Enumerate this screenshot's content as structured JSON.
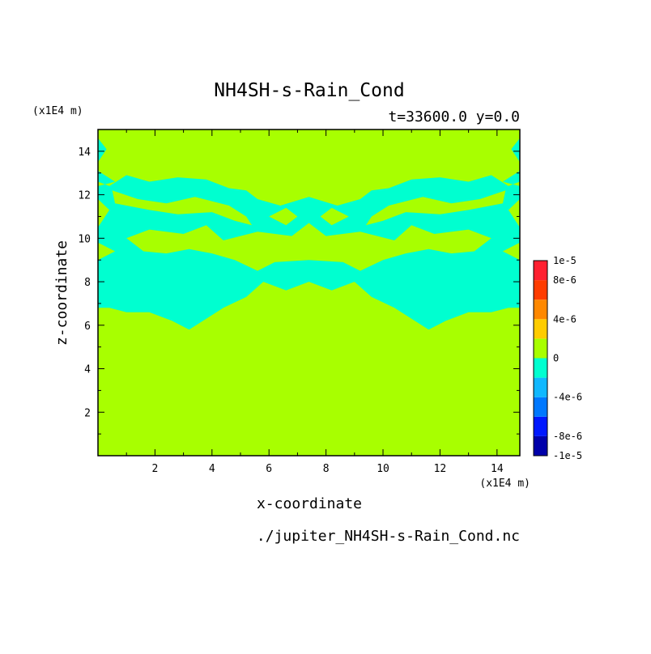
{
  "chart_data": {
    "type": "heatmap",
    "title": "NH4SH-s-Rain_Cond",
    "subtitle": "t=33600.0 y=0.0",
    "xlabel": "x-coordinate",
    "ylabel": "z-coordinate",
    "x_unit": "(x1E4 m)",
    "y_unit": "(x1E4 m)",
    "xlim": [
      0,
      14.8
    ],
    "ylim": [
      0,
      15
    ],
    "x_ticks": [
      2,
      4,
      6,
      8,
      10,
      12,
      14
    ],
    "y_ticks": [
      2,
      4,
      6,
      8,
      10,
      12,
      14
    ],
    "footer": "./jupiter_NH4SH-s-Rain_Cond.nc",
    "colorbar": {
      "levels": [
        -1e-05,
        -8e-06,
        -6e-06,
        -4e-06,
        -2e-06,
        0,
        2e-06,
        4e-06,
        6e-06,
        8e-06,
        1e-05
      ],
      "colors": [
        "#0000aa",
        "#0018ff",
        "#0078ff",
        "#10b8ff",
        "#00ffd0",
        "#a8ff00",
        "#ffcc00",
        "#ff8800",
        "#ff3c00",
        "#ff2030"
      ],
      "tick_labels": [
        {
          "label": "1e-5",
          "value": 1e-05
        },
        {
          "label": "8e-6",
          "value": 8e-06
        },
        {
          "label": "4e-6",
          "value": 4e-06
        },
        {
          "label": "0",
          "value": 0
        },
        {
          "label": "-4e-6",
          "value": -4e-06
        },
        {
          "label": "-8e-6",
          "value": -8e-06
        },
        {
          "label": "-1e-5",
          "value": -1e-05
        }
      ]
    },
    "background_value_color": "#a8ff00",
    "negative_region_color": "#00ffd0",
    "negative_band_outline_left": [
      [
        0,
        15
      ],
      [
        0,
        14.6
      ],
      [
        0.3,
        14.1
      ],
      [
        0,
        13.5
      ],
      [
        0,
        12.6
      ],
      [
        0.4,
        12.4
      ],
      [
        1,
        12.9
      ],
      [
        1.8,
        12.6
      ],
      [
        2.8,
        12.8
      ],
      [
        3.8,
        12.7
      ],
      [
        4.6,
        12.3
      ],
      [
        5.2,
        12.2
      ],
      [
        5.6,
        11.8
      ],
      [
        6.4,
        11.5
      ],
      [
        7.4,
        11.9
      ],
      [
        7.4,
        10.7
      ],
      [
        6.8,
        10.1
      ],
      [
        5.6,
        10.3
      ],
      [
        4.4,
        9.9
      ],
      [
        3.8,
        10.6
      ],
      [
        3,
        10.2
      ],
      [
        1.8,
        10.4
      ],
      [
        1,
        10
      ],
      [
        1.6,
        9.4
      ],
      [
        2.4,
        9.3
      ],
      [
        3.2,
        9.5
      ],
      [
        4,
        9.3
      ],
      [
        4.8,
        9
      ],
      [
        5.6,
        8.5
      ],
      [
        6.2,
        8.9
      ],
      [
        7.4,
        9
      ],
      [
        7.4,
        8
      ],
      [
        6.6,
        7.6
      ],
      [
        5.8,
        8
      ],
      [
        5.2,
        7.3
      ],
      [
        4.4,
        6.8
      ],
      [
        3.8,
        6.3
      ],
      [
        3.2,
        5.8
      ],
      [
        2.6,
        6.2
      ],
      [
        1.8,
        6.6
      ],
      [
        1,
        6.6
      ],
      [
        0.4,
        6.8
      ],
      [
        0,
        6.8
      ],
      [
        0,
        9
      ],
      [
        0.6,
        9.4
      ],
      [
        0,
        9.8
      ],
      [
        0,
        10.5
      ],
      [
        0.4,
        11.3
      ],
      [
        0,
        11.8
      ],
      [
        0,
        12.4
      ],
      [
        0.6,
        12.6
      ],
      [
        0,
        13.1
      ],
      [
        0,
        15
      ]
    ],
    "negative_band_outline_right": [
      [
        14.8,
        15
      ],
      [
        14.8,
        14.6
      ],
      [
        14.5,
        14.1
      ],
      [
        14.8,
        13.5
      ],
      [
        14.8,
        12.6
      ],
      [
        14.4,
        12.4
      ],
      [
        13.8,
        12.9
      ],
      [
        13,
        12.6
      ],
      [
        12,
        12.8
      ],
      [
        11,
        12.7
      ],
      [
        10.2,
        12.3
      ],
      [
        9.6,
        12.2
      ],
      [
        9.2,
        11.8
      ],
      [
        8.4,
        11.5
      ],
      [
        7.4,
        11.9
      ],
      [
        7.4,
        10.7
      ],
      [
        8,
        10.1
      ],
      [
        9.2,
        10.3
      ],
      [
        10.4,
        9.9
      ],
      [
        11,
        10.6
      ],
      [
        11.8,
        10.2
      ],
      [
        13,
        10.4
      ],
      [
        13.8,
        10
      ],
      [
        13.2,
        9.4
      ],
      [
        12.4,
        9.3
      ],
      [
        11.6,
        9.5
      ],
      [
        10.8,
        9.3
      ],
      [
        10,
        9
      ],
      [
        9.2,
        8.5
      ],
      [
        8.6,
        8.9
      ],
      [
        7.4,
        9
      ],
      [
        7.4,
        8
      ],
      [
        8.2,
        7.6
      ],
      [
        9,
        8
      ],
      [
        9.6,
        7.3
      ],
      [
        10.4,
        6.8
      ],
      [
        11,
        6.3
      ],
      [
        11.6,
        5.8
      ],
      [
        12.2,
        6.2
      ],
      [
        13,
        6.6
      ],
      [
        13.8,
        6.6
      ],
      [
        14.4,
        6.8
      ],
      [
        14.8,
        6.8
      ],
      [
        14.8,
        9
      ],
      [
        14.2,
        9.4
      ],
      [
        14.8,
        9.8
      ],
      [
        14.8,
        10.5
      ],
      [
        14.4,
        11.3
      ],
      [
        14.8,
        11.8
      ],
      [
        14.8,
        12.4
      ],
      [
        14.2,
        12.6
      ],
      [
        14.8,
        13.1
      ],
      [
        14.8,
        15
      ]
    ],
    "positive_inner_patches": [
      [
        [
          0.6,
          14.4
        ],
        [
          2,
          14.3
        ],
        [
          3.4,
          13.8
        ],
        [
          4.4,
          14.1
        ],
        [
          5.6,
          14.2
        ],
        [
          6.8,
          13.9
        ],
        [
          7.4,
          14.1
        ],
        [
          8,
          13.9
        ],
        [
          9.2,
          14.2
        ],
        [
          10.4,
          14.1
        ],
        [
          11.4,
          13.8
        ],
        [
          12.8,
          14.3
        ],
        [
          14.2,
          14.4
        ],
        [
          14.2,
          14.8
        ],
        [
          0.6,
          14.8
        ]
      ],
      [
        [
          0.5,
          12.2
        ],
        [
          1.4,
          11.8
        ],
        [
          2.4,
          11.6
        ],
        [
          3.4,
          11.9
        ],
        [
          4.6,
          11.5
        ],
        [
          5.2,
          11
        ],
        [
          5.4,
          10.6
        ],
        [
          4.8,
          10.8
        ],
        [
          4,
          11.2
        ],
        [
          2.8,
          11.1
        ],
        [
          1.8,
          11.3
        ],
        [
          0.6,
          11.6
        ]
      ],
      [
        [
          14.3,
          12.2
        ],
        [
          13.4,
          11.8
        ],
        [
          12.4,
          11.6
        ],
        [
          11.4,
          11.9
        ],
        [
          10.2,
          11.5
        ],
        [
          9.6,
          11
        ],
        [
          9.4,
          10.6
        ],
        [
          10,
          10.8
        ],
        [
          10.8,
          11.2
        ],
        [
          12,
          11.1
        ],
        [
          13,
          11.3
        ],
        [
          14.2,
          11.6
        ]
      ],
      [
        [
          6,
          11
        ],
        [
          6.6,
          10.6
        ],
        [
          7.0,
          11
        ],
        [
          6.6,
          11.4
        ]
      ],
      [
        [
          8.8,
          11
        ],
        [
          8.2,
          10.6
        ],
        [
          7.8,
          11
        ],
        [
          8.2,
          11.4
        ]
      ]
    ]
  }
}
